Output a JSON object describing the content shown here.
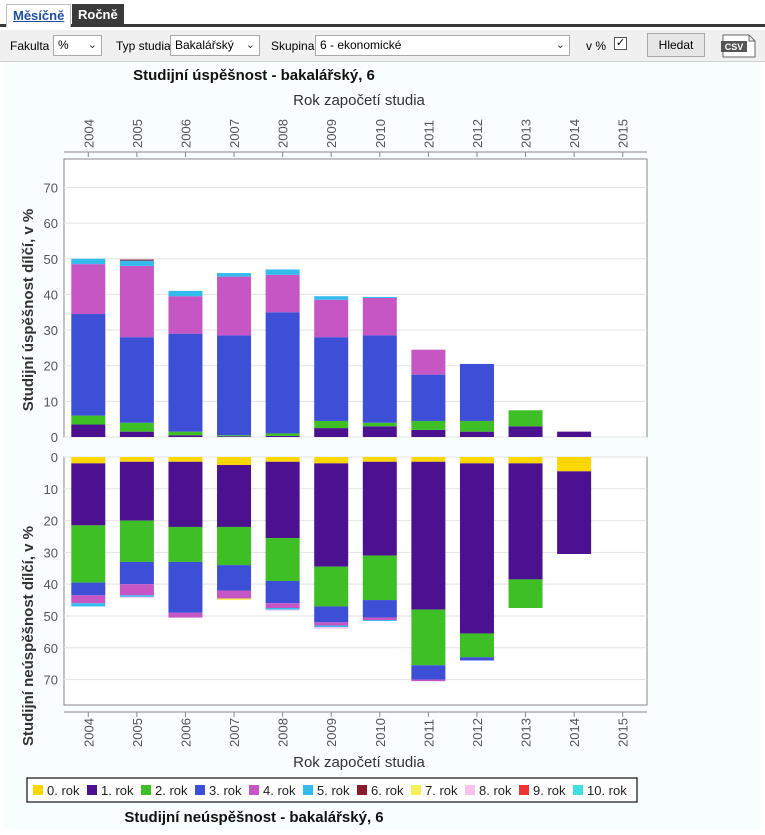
{
  "tabs": {
    "monthly": "Měsíčně",
    "yearly": "Ročně"
  },
  "toolbar": {
    "fakulta_label": "Fakulta",
    "fakulta_value": "%",
    "typ_label": "Typ studia",
    "typ_value": "Bakalářský",
    "skupina_label": "Skupina",
    "skupina_value": "6 - ekonomické",
    "percent_label": "v %",
    "percent_checked": true,
    "search_label": "Hledat",
    "csv_label": "CSV"
  },
  "chart_data": {
    "type": "bar",
    "stacked": true,
    "title_top": "Studijní úspěšnost -  bakalářský, 6",
    "title_bottom": "Studijní neúspěšnost -  bakalářský, 6",
    "xlabel": "Rok započetí studia",
    "categories": [
      "2004",
      "2005",
      "2006",
      "2007",
      "2008",
      "2009",
      "2010",
      "2011",
      "2012",
      "2013",
      "2014",
      "2015"
    ],
    "top": {
      "ylabel": "Studijní úspěšnost dílčí, v %",
      "ylim": [
        0,
        78
      ],
      "yticks": [
        0,
        10,
        20,
        30,
        40,
        50,
        60,
        70
      ],
      "series": [
        {
          "name": "0. rok",
          "color": "#ffd700",
          "values": [
            0,
            0,
            0,
            0,
            0,
            0,
            0,
            0,
            0,
            0,
            0,
            0
          ]
        },
        {
          "name": "1. rok",
          "color": "#4b1190",
          "values": [
            3.5,
            1.5,
            0.5,
            0.2,
            0.3,
            2.5,
            3,
            2,
            1.5,
            3,
            1.5,
            0
          ]
        },
        {
          "name": "2. rok",
          "color": "#3fbf26",
          "values": [
            2.5,
            2.5,
            1,
            0.3,
            0.7,
            2,
            1,
            2.5,
            3,
            4.5,
            0,
            0
          ]
        },
        {
          "name": "3. rok",
          "color": "#3c4fd6",
          "values": [
            28.5,
            24,
            27.5,
            28,
            34,
            23.5,
            24.5,
            13,
            16,
            0,
            0,
            0
          ]
        },
        {
          "name": "4. rok",
          "color": "#c656c4",
          "values": [
            14,
            20,
            10.5,
            16.5,
            10.5,
            10.5,
            10.5,
            7,
            0,
            0,
            0,
            0
          ]
        },
        {
          "name": "5. rok",
          "color": "#33bbee",
          "values": [
            1.5,
            1.5,
            1.5,
            1,
            1.5,
            1,
            0.3,
            0,
            0,
            0,
            0,
            0
          ]
        },
        {
          "name": "6. rok",
          "color": "#8b1a2c",
          "values": [
            0,
            0.3,
            0,
            0,
            0,
            0,
            0,
            0,
            0,
            0,
            0,
            0
          ]
        },
        {
          "name": "7. rok",
          "color": "#f5f05a",
          "values": [
            0,
            0,
            0,
            0,
            0,
            0,
            0,
            0,
            0,
            0,
            0,
            0
          ]
        },
        {
          "name": "8. rok",
          "color": "#f7c3ec",
          "values": [
            0,
            0,
            0,
            0,
            0,
            0,
            0,
            0,
            0,
            0,
            0,
            0
          ]
        },
        {
          "name": "9. rok",
          "color": "#ee3333",
          "values": [
            0,
            0,
            0,
            0,
            0,
            0,
            0,
            0,
            0,
            0,
            0,
            0
          ]
        },
        {
          "name": "10. rok",
          "color": "#3de0dc",
          "values": [
            0,
            0,
            0,
            0,
            0,
            0,
            0,
            0,
            0,
            0,
            0,
            0
          ]
        }
      ]
    },
    "bottom": {
      "ylabel": "Studijní neúspěšnost dílčí, v %",
      "ylim": [
        0,
        78
      ],
      "yticks": [
        0,
        10,
        20,
        30,
        40,
        50,
        60,
        70
      ],
      "reversed": true,
      "series": [
        {
          "name": "0. rok",
          "color": "#ffd700",
          "values": [
            2,
            1.5,
            1.5,
            2.5,
            1.5,
            2,
            1.5,
            1.5,
            2,
            2,
            4.5,
            0
          ]
        },
        {
          "name": "1. rok",
          "color": "#4b1190",
          "values": [
            19.5,
            18.5,
            20.5,
            19.5,
            24,
            32.5,
            29.5,
            46.5,
            53.5,
            36.5,
            26,
            0
          ]
        },
        {
          "name": "2. rok",
          "color": "#3fbf26",
          "values": [
            18,
            13,
            11,
            12,
            13.5,
            12.5,
            14,
            17.5,
            7.5,
            9,
            0,
            0
          ]
        },
        {
          "name": "3. rok",
          "color": "#3c4fd6",
          "values": [
            4,
            7,
            16,
            8,
            7,
            5,
            5.5,
            4.5,
            1,
            0,
            0,
            0
          ]
        },
        {
          "name": "4. rok",
          "color": "#c656c4",
          "values": [
            2.5,
            3.5,
            1.5,
            2.5,
            1.5,
            1,
            0.8,
            0.5,
            0,
            0,
            0,
            0
          ]
        },
        {
          "name": "5. rok",
          "color": "#33bbee",
          "values": [
            1,
            0.5,
            0,
            0,
            0.5,
            0.5,
            0.3,
            0,
            0,
            0,
            0,
            0
          ]
        },
        {
          "name": "6. rok",
          "color": "#8b1a2c",
          "values": [
            0,
            0,
            0,
            0,
            0,
            0,
            0,
            0,
            0,
            0,
            0,
            0
          ]
        },
        {
          "name": "7. rok",
          "color": "#f5f05a",
          "values": [
            0,
            0,
            0,
            0.5,
            0,
            0,
            0,
            0,
            0,
            0,
            0,
            0
          ]
        },
        {
          "name": "8. rok",
          "color": "#f7c3ec",
          "values": [
            0,
            0.3,
            0,
            0,
            0.3,
            0.5,
            0,
            0,
            0,
            0,
            0,
            0
          ]
        },
        {
          "name": "9. rok",
          "color": "#ee3333",
          "values": [
            0,
            0,
            0,
            0,
            0,
            0,
            0,
            0,
            0,
            0,
            0,
            0
          ]
        },
        {
          "name": "10. rok",
          "color": "#3de0dc",
          "values": [
            0,
            0,
            0,
            0,
            0,
            0,
            0,
            0,
            0,
            0,
            0,
            0
          ]
        }
      ]
    },
    "legend": [
      "0. rok",
      "1. rok",
      "2. rok",
      "3. rok",
      "4. rok",
      "5. rok",
      "6. rok",
      "7. rok",
      "8. rok",
      "9. rok",
      "10. rok"
    ],
    "legend_colors": [
      "#ffd700",
      "#4b1190",
      "#3fbf26",
      "#3c4fd6",
      "#c656c4",
      "#33bbee",
      "#8b1a2c",
      "#f5f05a",
      "#f7c3ec",
      "#ee3333",
      "#3de0dc"
    ]
  }
}
